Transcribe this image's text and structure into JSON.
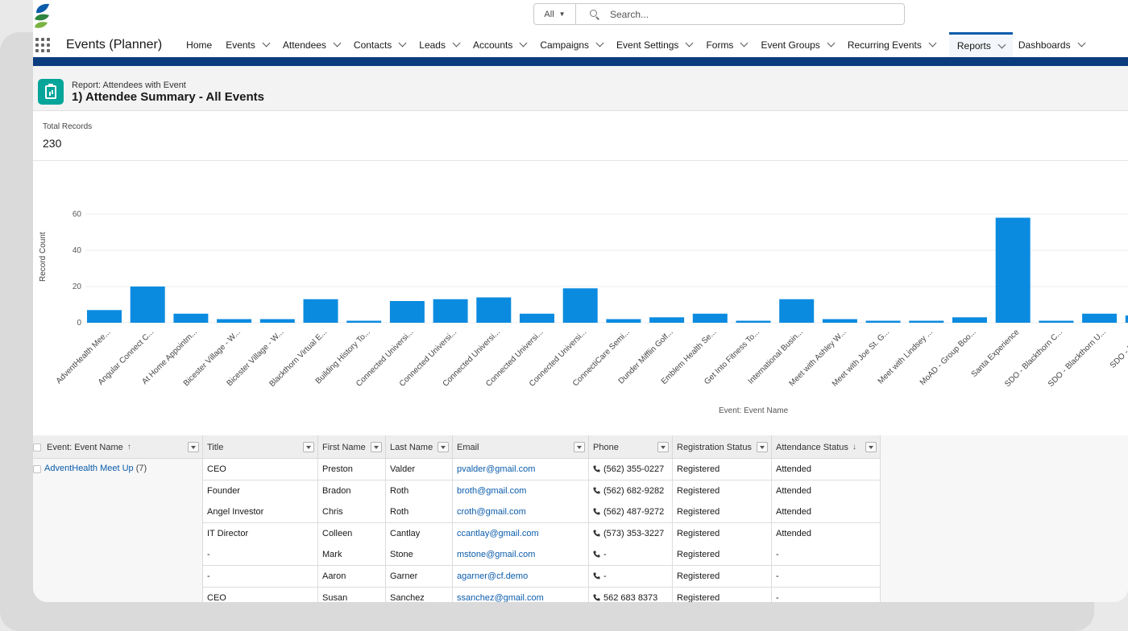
{
  "search": {
    "scope": "All",
    "placeholder": "Search..."
  },
  "nav": {
    "app_name": "Events (Planner)",
    "items": [
      {
        "label": "Home",
        "chevron": false
      },
      {
        "label": "Events",
        "chevron": true
      },
      {
        "label": "Attendees",
        "chevron": true
      },
      {
        "label": "Contacts",
        "chevron": true
      },
      {
        "label": "Leads",
        "chevron": true
      },
      {
        "label": "Accounts",
        "chevron": true
      },
      {
        "label": "Campaigns",
        "chevron": true
      },
      {
        "label": "Event Settings",
        "chevron": true
      },
      {
        "label": "Forms",
        "chevron": true
      },
      {
        "label": "Event Groups",
        "chevron": true
      },
      {
        "label": "Recurring Events",
        "chevron": true
      },
      {
        "label": "Reports",
        "chevron": true,
        "active": true
      },
      {
        "label": "Dashboards",
        "chevron": true
      }
    ]
  },
  "report": {
    "type_label": "Report: Attendees with Event",
    "title": "1) Attendee Summary - All Events",
    "total_label": "Total Records",
    "total_value": "230"
  },
  "chart_data": {
    "type": "bar",
    "xlabel": "Event: Event Name",
    "ylabel": "Record Count",
    "yticks": [
      0,
      20,
      40,
      60
    ],
    "ylim": [
      0,
      60
    ],
    "color": "#0b8be0",
    "categories": [
      "AdventHealth Mee...",
      "Angular Connect C...",
      "At Home Appointm...",
      "Bicester Village - W...",
      "Bicester Village - W...",
      "Blackthorn Virtual E...",
      "Building History To...",
      "Connected Universi...",
      "Connected Universi...",
      "Connected Universi...",
      "Connected Universi...",
      "Connected Universi...",
      "ConnectiCare Semi...",
      "Dunder Mifflin Golf...",
      "Emblem Health Se...",
      "Get Into Fitness To...",
      "International Busin...",
      "Meet with Ashley W...",
      "Meet with Joe St. G...",
      "Meet with Lindsey ...",
      "MoAD - Group Boo...",
      "Santa Experience",
      "SDO - Blackthorn C...",
      "SDO - Blackthorn U...",
      "SDO - Blackth"
    ],
    "values": [
      7,
      20,
      5,
      2,
      2,
      13,
      1,
      12,
      13,
      14,
      5,
      19,
      2,
      3,
      5,
      1,
      13,
      2,
      1,
      1,
      3,
      58,
      1,
      5,
      4
    ]
  },
  "table": {
    "columns": [
      {
        "label": "Event: Event Name",
        "sort": "↑",
        "checkbox": true
      },
      {
        "label": "Title"
      },
      {
        "label": "First Name"
      },
      {
        "label": "Last Name"
      },
      {
        "label": "Email"
      },
      {
        "label": "Phone"
      },
      {
        "label": "Registration Status"
      },
      {
        "label": "Attendance Status",
        "sort": "↓"
      }
    ],
    "group": {
      "name": "AdventHealth Meet Up",
      "count": "(7)"
    },
    "rows": [
      {
        "title": "CEO",
        "first": "Preston",
        "last": "Valder",
        "email": "pvalder@gmail.com",
        "phone": "(562) 355-0227",
        "reg": "Registered",
        "att": "Attended"
      },
      {
        "title": "Founder",
        "first": "Bradon",
        "last": "Roth",
        "email": "broth@gmail.com",
        "phone": "(562) 682-9282",
        "reg": "Registered",
        "att": "Attended"
      },
      {
        "title": "Angel Investor",
        "first": "Chris",
        "last": "Roth",
        "email": "croth@gmail.com",
        "phone": "(562) 487-9272",
        "reg": "Registered",
        "att": "Attended"
      },
      {
        "title": "IT Director",
        "first": "Colleen",
        "last": "Cantlay",
        "email": "ccantlay@gmail.com",
        "phone": "(573) 353-3227",
        "reg": "Registered",
        "att": "Attended"
      },
      {
        "title": "-",
        "first": "Mark",
        "last": "Stone",
        "email": "mstone@gmail.com",
        "phone": "-",
        "reg": "Registered",
        "att": "-"
      },
      {
        "title": "-",
        "first": "Aaron",
        "last": "Garner",
        "email": "agarner@cf.demo",
        "phone": "-",
        "reg": "Registered",
        "att": "-"
      },
      {
        "title": "CEO",
        "first": "Susan",
        "last": "Sanchez",
        "email": "ssanchez@gmail.com",
        "phone": "562 683 8373",
        "reg": "Registered",
        "att": "-"
      }
    ]
  }
}
